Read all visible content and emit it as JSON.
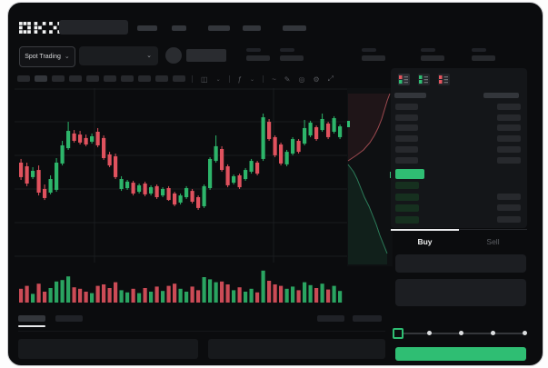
{
  "app": {
    "name": "OKX"
  },
  "header": {
    "search_placeholder": "",
    "nav_item_count": 5
  },
  "subheader": {
    "market_type_label": "Spot Trading",
    "chevron": "⌄",
    "stat_count": 5
  },
  "toolbar": {
    "timeframe_count": 10,
    "active_timeframe_index": 1,
    "icon_groups": [
      {
        "name": "chart-style-icon",
        "glyph": "◫",
        "chevron": true
      },
      {
        "name": "indicators-icon",
        "glyph": "ƒ",
        "chevron": true
      },
      {
        "name": "overlay-line-icon",
        "glyph": "~",
        "chevron": false
      },
      {
        "name": "draw-icon",
        "glyph": "✎",
        "chevron": false
      },
      {
        "name": "screenshot-icon",
        "glyph": "◎",
        "chevron": false
      },
      {
        "name": "settings-icon",
        "glyph": "⚙",
        "chevron": false
      },
      {
        "name": "fullscreen-icon",
        "glyph": "⤢",
        "chevron": false
      }
    ]
  },
  "orderbook": {
    "view_modes": [
      {
        "name": "book-view-both",
        "top": "#e5555f",
        "bottom": "#2fbe73",
        "active": true
      },
      {
        "name": "book-view-bids",
        "top": "#2fbe73",
        "bottom": "#2fbe73",
        "active": false
      },
      {
        "name": "book-view-asks",
        "top": "#e5555f",
        "bottom": "#e5555f",
        "active": false
      }
    ],
    "ask_row_count": 6,
    "bid_row_count": 4,
    "bid_amount_start": 1
  },
  "trade_panel": {
    "tabs": [
      {
        "label": "Buy",
        "active": true
      },
      {
        "label": "Sell",
        "active": false
      }
    ],
    "input_count": 2,
    "slider_steps": 5,
    "slider_active_index": 0
  },
  "bottom_bar": {
    "tab_count": 2,
    "active_tab_index": 0,
    "right_button_count": 2,
    "panel_count": 2
  },
  "colors": {
    "green": "#2fbe73",
    "red": "#e0525e",
    "green_candle": "#2db56a",
    "red_candle": "#e0525e",
    "bid_row": "#16301f",
    "skeleton": "#27292d",
    "grid": "#1a1c1f",
    "depth_ask_line": "#9e4a50",
    "depth_bid_line": "#2c7d5a",
    "depth_ask_fill": "rgba(190,70,80,0.10)",
    "depth_bid_fill": "rgba(45,180,105,0.10)"
  },
  "chart_data": {
    "type": "candlestick",
    "title": "",
    "xlabel": "",
    "ylabel": "",
    "ylim": [
      0,
      100
    ],
    "grid": true,
    "candles": [
      [
        57.3,
        59.4,
        47.4,
        49
      ],
      [
        55.2,
        57.3,
        43.8,
        45.3
      ],
      [
        49,
        54.7,
        47.9,
        52.6
      ],
      [
        53.1,
        55.7,
        38.5,
        40.1
      ],
      [
        42.2,
        44.8,
        35.9,
        37
      ],
      [
        40.1,
        50,
        39.1,
        47.9
      ],
      [
        41.7,
        59.9,
        40.6,
        57.3
      ],
      [
        56.8,
        69.8,
        55.7,
        67.2
      ],
      [
        65.6,
        80.7,
        64.6,
        75.5
      ],
      [
        74,
        76,
        68.8,
        69.8
      ],
      [
        73.4,
        75.5,
        67.7,
        68.8
      ],
      [
        71.4,
        73.4,
        66.7,
        67.7
      ],
      [
        69.3,
        74,
        68.2,
        72.4
      ],
      [
        75,
        77.1,
        66.1,
        67.2
      ],
      [
        71.4,
        72.9,
        58.9,
        59.9
      ],
      [
        62,
        63.5,
        54.7,
        55.7
      ],
      [
        60.9,
        62.5,
        47.9,
        49
      ],
      [
        42.2,
        49.5,
        41.1,
        47.9
      ],
      [
        42.7,
        47.4,
        41.7,
        46.4
      ],
      [
        45.8,
        46.9,
        38.5,
        39.6
      ],
      [
        40.6,
        45.3,
        39.6,
        44.3
      ],
      [
        45.3,
        46.4,
        38,
        39.1
      ],
      [
        39.6,
        44.3,
        38.5,
        43.2
      ],
      [
        43.8,
        44.8,
        36.5,
        37.5
      ],
      [
        38.5,
        43.2,
        37.5,
        42.2
      ],
      [
        42.7,
        43.8,
        35.4,
        35.9
      ],
      [
        39.6,
        40.6,
        32.3,
        33.3
      ],
      [
        34.4,
        39.6,
        33.3,
        38.5
      ],
      [
        37.5,
        43.8,
        36.5,
        42.7
      ],
      [
        41.1,
        42.2,
        33.9,
        34.9
      ],
      [
        37.5,
        38.5,
        30.2,
        31.3
      ],
      [
        32.3,
        44.8,
        31.3,
        43.8
      ],
      [
        42.7,
        60.4,
        41.7,
        59.4
      ],
      [
        58.3,
        72.9,
        57.3,
        66.7
      ],
      [
        65.1,
        66.7,
        52.1,
        53.1
      ],
      [
        55.2,
        56.3,
        43.2,
        44.3
      ],
      [
        45.8,
        50.5,
        44.8,
        49.5
      ],
      [
        50,
        51,
        42.2,
        43.2
      ],
      [
        47.9,
        54.2,
        46.9,
        53.1
      ],
      [
        52.1,
        59.4,
        51,
        58.3
      ],
      [
        57.3,
        58.3,
        50,
        51
      ],
      [
        59.4,
        85.4,
        58.3,
        83.3
      ],
      [
        80.7,
        82.3,
        69.8,
        70.8
      ],
      [
        71.9,
        72.9,
        60.4,
        61.5
      ],
      [
        67.7,
        68.8,
        55.7,
        56.8
      ],
      [
        56.3,
        64.6,
        55.2,
        63.5
      ],
      [
        62.5,
        71.9,
        61.5,
        70.8
      ],
      [
        69.8,
        70.8,
        62.5,
        63.5
      ],
      [
        68.2,
        81.8,
        67.2,
        77.1
      ],
      [
        72.9,
        81.3,
        71.9,
        80.2
      ],
      [
        77.6,
        78.6,
        69.8,
        70.8
      ],
      [
        76,
        85.4,
        75,
        82.3
      ],
      [
        79.7,
        80.7,
        70.8,
        71.9
      ],
      [
        75,
        83.9,
        74,
        82.8
      ],
      [
        71.9,
        79.2,
        70.8,
        78.1
      ]
    ],
    "volumes": [
      38,
      46,
      24,
      52,
      30,
      40,
      58,
      62,
      72,
      42,
      38,
      30,
      26,
      46,
      50,
      40,
      56,
      34,
      28,
      38,
      26,
      40,
      30,
      44,
      32,
      46,
      52,
      38,
      30,
      44,
      34,
      70,
      64,
      56,
      58,
      50,
      34,
      42,
      30,
      38,
      28,
      88,
      60,
      50,
      46,
      38,
      44,
      34,
      56,
      48,
      40,
      52,
      36,
      46,
      32
    ],
    "depth": {
      "asks_line": [
        [
          47,
          6
        ],
        [
          44,
          14
        ],
        [
          41,
          24
        ],
        [
          38,
          34
        ],
        [
          34,
          44
        ],
        [
          30,
          52
        ],
        [
          25,
          60
        ],
        [
          18,
          68
        ],
        [
          10,
          74
        ],
        [
          1,
          80
        ]
      ],
      "bids_line": [
        [
          1,
          84
        ],
        [
          7,
          92
        ],
        [
          11,
          100
        ],
        [
          15,
          110
        ],
        [
          19,
          120
        ],
        [
          24,
          130
        ],
        [
          28,
          140
        ],
        [
          32,
          150
        ],
        [
          36,
          162
        ],
        [
          40,
          172
        ],
        [
          44,
          182
        ]
      ]
    }
  }
}
